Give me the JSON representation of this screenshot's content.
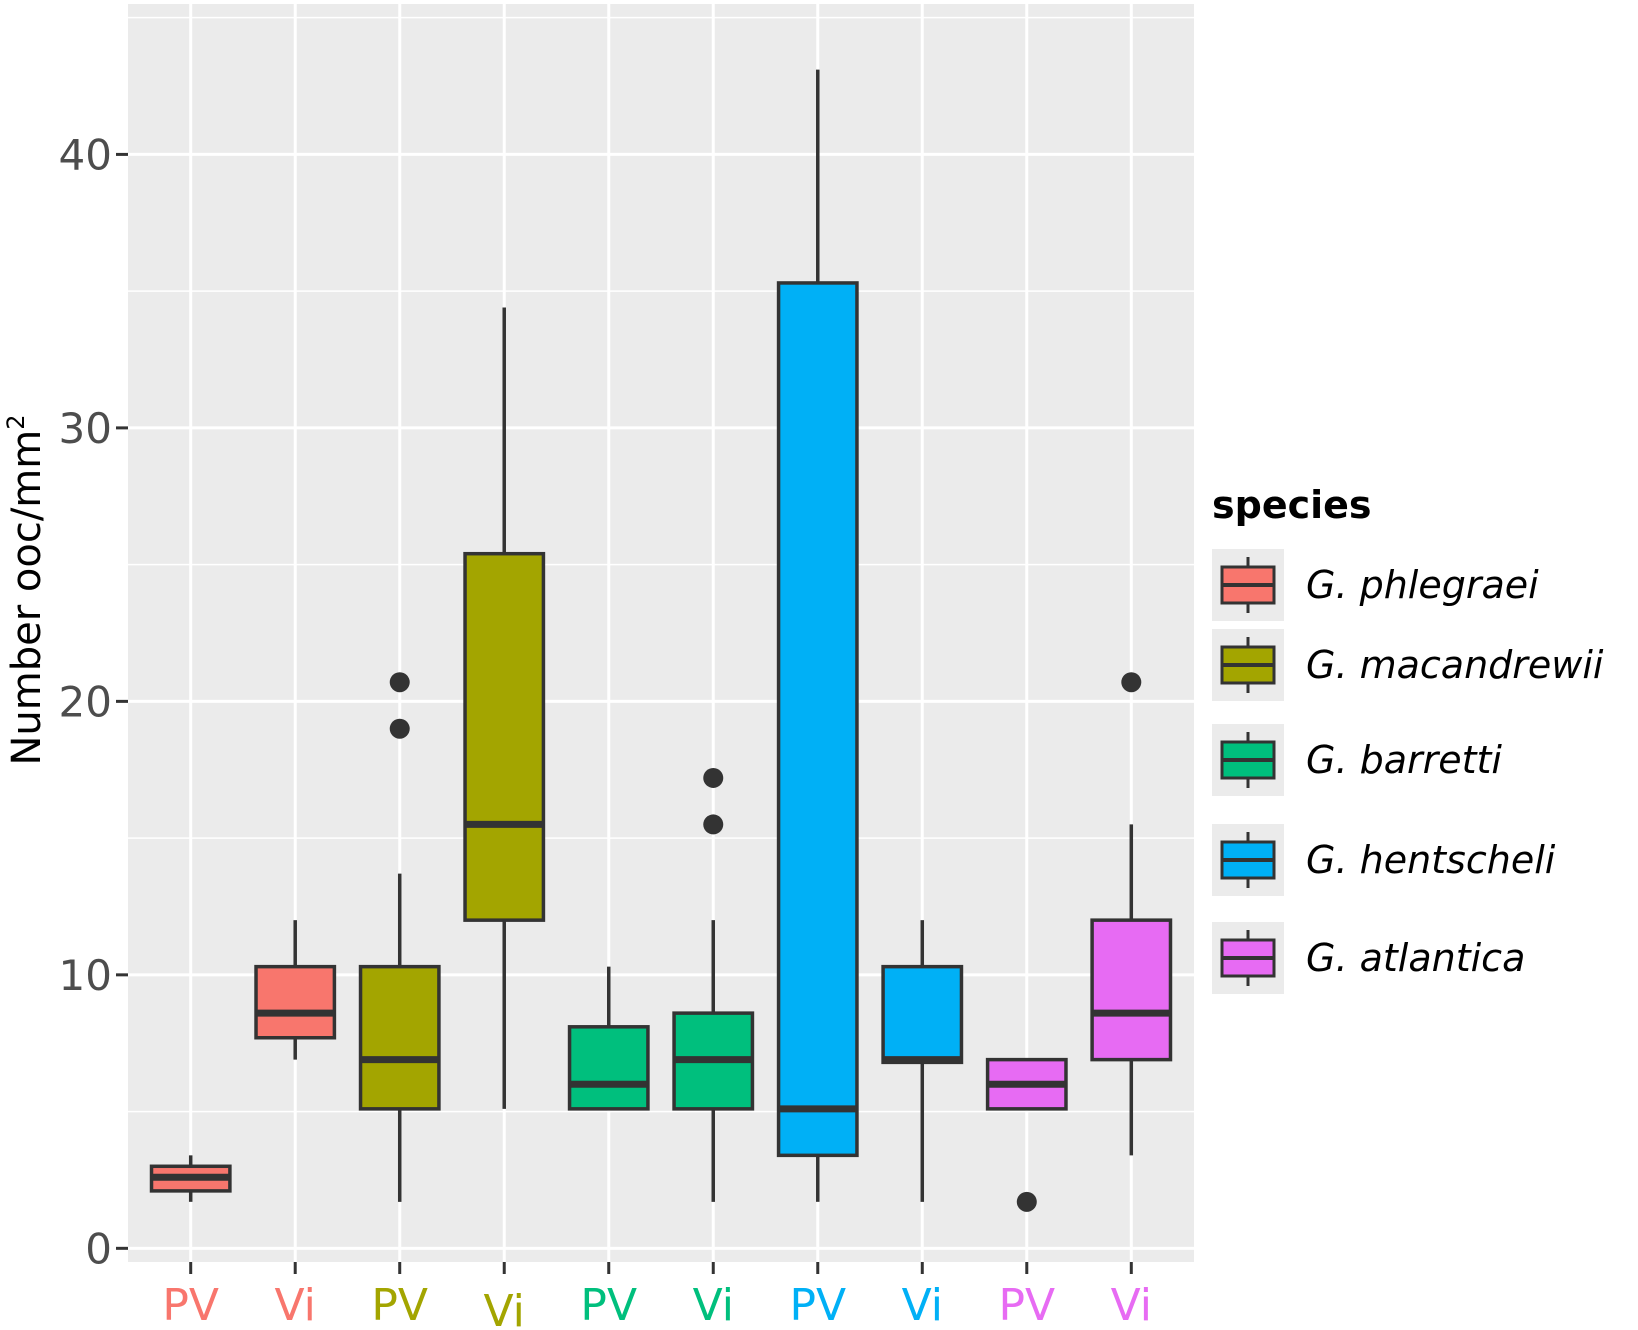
{
  "chart_data": {
    "type": "boxplot",
    "title": "",
    "xlabel": "",
    "ylabel": "Number ooc/mm",
    "ylabel_superscript": "2",
    "ylim": [
      -0.5,
      45.5
    ],
    "yticks": [
      0,
      10,
      20,
      30,
      40
    ],
    "ytick_labels": [
      "0",
      "10",
      "20",
      "30",
      "40"
    ],
    "grid": true,
    "legend": {
      "title": "species",
      "position": "right"
    },
    "species": [
      {
        "name": "G. phlegraei",
        "color": "#F8766D"
      },
      {
        "name": "G. macandrewii",
        "color": "#A3A500"
      },
      {
        "name": "G. barretti",
        "color": "#00BF7D"
      },
      {
        "name": "G. hentscheli",
        "color": "#00B0F6"
      },
      {
        "name": "G. atlantica",
        "color": "#E76BF3"
      }
    ],
    "categories": [
      "PV",
      "Vi",
      "PV",
      "Vi",
      "PV",
      "Vi",
      "PV",
      "Vi",
      "PV",
      "Vi"
    ],
    "boxes": [
      {
        "label": "PV",
        "species": 0,
        "whisker_low": 1.7,
        "q1": 2.1,
        "median": 2.6,
        "q3": 3.0,
        "whisker_high": 3.4,
        "outliers": []
      },
      {
        "label": "Vi",
        "species": 0,
        "whisker_low": 6.9,
        "q1": 7.7,
        "median": 8.6,
        "q3": 10.3,
        "whisker_high": 12.0,
        "outliers": []
      },
      {
        "label": "PV",
        "species": 1,
        "whisker_low": 1.7,
        "q1": 5.1,
        "median": 6.9,
        "q3": 10.3,
        "whisker_high": 13.7,
        "outliers": [
          19.0,
          20.7
        ]
      },
      {
        "label": "Vi",
        "species": 1,
        "whisker_low": 5.1,
        "q1": 12.0,
        "median": 15.5,
        "q3": 25.4,
        "whisker_high": 34.4,
        "outliers": []
      },
      {
        "label": "PV",
        "species": 2,
        "whisker_low": 5.1,
        "q1": 5.1,
        "median": 6.0,
        "q3": 8.1,
        "whisker_high": 10.3,
        "outliers": []
      },
      {
        "label": "Vi",
        "species": 2,
        "whisker_low": 1.7,
        "q1": 5.1,
        "median": 6.9,
        "q3": 8.6,
        "whisker_high": 12.0,
        "outliers": [
          15.5,
          17.2
        ]
      },
      {
        "label": "PV",
        "species": 3,
        "whisker_low": 1.7,
        "q1": 3.4,
        "median": 5.1,
        "q3": 35.3,
        "whisker_high": 43.1,
        "outliers": []
      },
      {
        "label": "Vi",
        "species": 3,
        "whisker_low": 1.7,
        "q1": 6.8,
        "median": 6.9,
        "q3": 10.3,
        "whisker_high": 12.0,
        "outliers": []
      },
      {
        "label": "PV",
        "species": 4,
        "whisker_low": 5.1,
        "q1": 5.1,
        "median": 6.0,
        "q3": 6.9,
        "whisker_high": 6.9,
        "outliers": [
          1.7
        ]
      },
      {
        "label": "Vi",
        "species": 4,
        "whisker_low": 3.4,
        "q1": 6.9,
        "median": 8.6,
        "q3": 12.0,
        "whisker_high": 15.5,
        "outliers": [
          20.7
        ]
      }
    ]
  }
}
